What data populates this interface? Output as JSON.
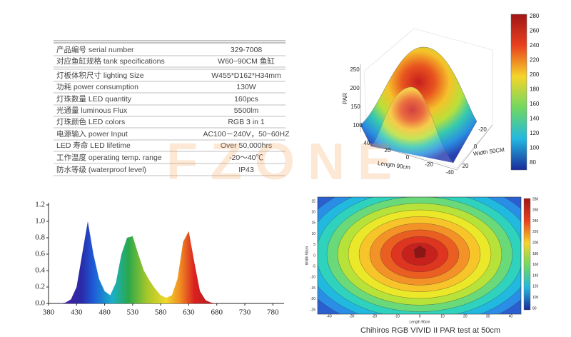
{
  "table": {
    "rows": [
      [
        "产品编号 serial number",
        "329-7008"
      ],
      [
        "对应鱼缸规格 tank specifications",
        "W60~90CM 鱼缸"
      ],
      [
        "灯板体积尺寸 lighting Size",
        "W455*D162*H34mm"
      ],
      [
        "功耗 power consumption",
        "130W"
      ],
      [
        "灯珠数量 LED quantity",
        "160pcs"
      ],
      [
        "光通量 luminous Flux",
        "5500lm"
      ],
      [
        "灯珠颜色 LED colors",
        "RGB 3 in 1"
      ],
      [
        "电源输入 power Input",
        "AC100－240V，50~60HZ"
      ],
      [
        "LED 寿命 LED lifetime",
        "Over 50,000hrs"
      ],
      [
        "工作温度 operating temp. range",
        "-20～40℃"
      ],
      [
        "防水等级 (waterproof level)",
        "IP43"
      ]
    ]
  },
  "watermark": "FZONE",
  "surface": {
    "z_label": "PAR",
    "z_ticks": [
      "250",
      "200",
      "150",
      "100"
    ],
    "x_label": "Length 90cm",
    "x_ticks": [
      "40",
      "20",
      "0",
      "-20",
      "-40"
    ],
    "y_label": "Width 50CM",
    "y_ticks": [
      "-20",
      "0",
      "20"
    ],
    "colorbar_ticks": [
      "280",
      "260",
      "240",
      "220",
      "200",
      "180",
      "160",
      "140",
      "120",
      "100",
      "80"
    ]
  },
  "heatmap": {
    "x_label": "Length 90cm",
    "y_label": "Width 50cm",
    "x_ticks": [
      "-40",
      "-30",
      "-20",
      "-10",
      "0",
      "10",
      "20",
      "30",
      "40"
    ],
    "y_ticks": [
      "25",
      "20",
      "15",
      "10",
      "5",
      "0",
      "-5",
      "-10",
      "-15",
      "-20",
      "-25"
    ],
    "colorbar_ticks": [
      "280",
      "260",
      "240",
      "220",
      "200",
      "180",
      "160",
      "140",
      "120",
      "100",
      "80"
    ],
    "caption": "Chihiros RGB VIVID II PAR test at 50cm"
  },
  "chart_data": {
    "type": "line",
    "x": [
      380,
      390,
      400,
      410,
      420,
      430,
      440,
      450,
      460,
      470,
      480,
      490,
      500,
      510,
      520,
      530,
      540,
      550,
      560,
      570,
      580,
      590,
      600,
      610,
      620,
      630,
      640,
      650,
      660,
      670,
      680,
      690,
      700,
      710,
      720,
      730,
      740,
      750,
      760,
      770,
      780
    ],
    "values": [
      0,
      0,
      0,
      0.01,
      0.05,
      0.2,
      0.6,
      1.0,
      0.6,
      0.3,
      0.15,
      0.1,
      0.25,
      0.6,
      0.8,
      0.82,
      0.6,
      0.4,
      0.28,
      0.18,
      0.1,
      0.07,
      0.1,
      0.3,
      0.75,
      0.88,
      0.5,
      0.15,
      0.04,
      0.01,
      0,
      0,
      0,
      0,
      0,
      0,
      0,
      0,
      0,
      0,
      0
    ],
    "xlim": [
      380,
      800
    ],
    "ylim": [
      0,
      1.2
    ],
    "xticks": [
      380,
      430,
      480,
      530,
      580,
      630,
      680,
      730,
      780
    ],
    "yticks": [
      {
        "value": 0,
        "label": "0.0"
      },
      {
        "value": 0.2,
        "label": "0.2"
      },
      {
        "value": 0.4,
        "label": "0.4"
      },
      {
        "value": 0.6,
        "label": "0.6"
      },
      {
        "value": 0.8,
        "label": "0.8"
      },
      {
        "value": 1.0,
        "label": "1.0"
      },
      {
        "value": 1.2,
        "label": "1.2"
      }
    ]
  }
}
